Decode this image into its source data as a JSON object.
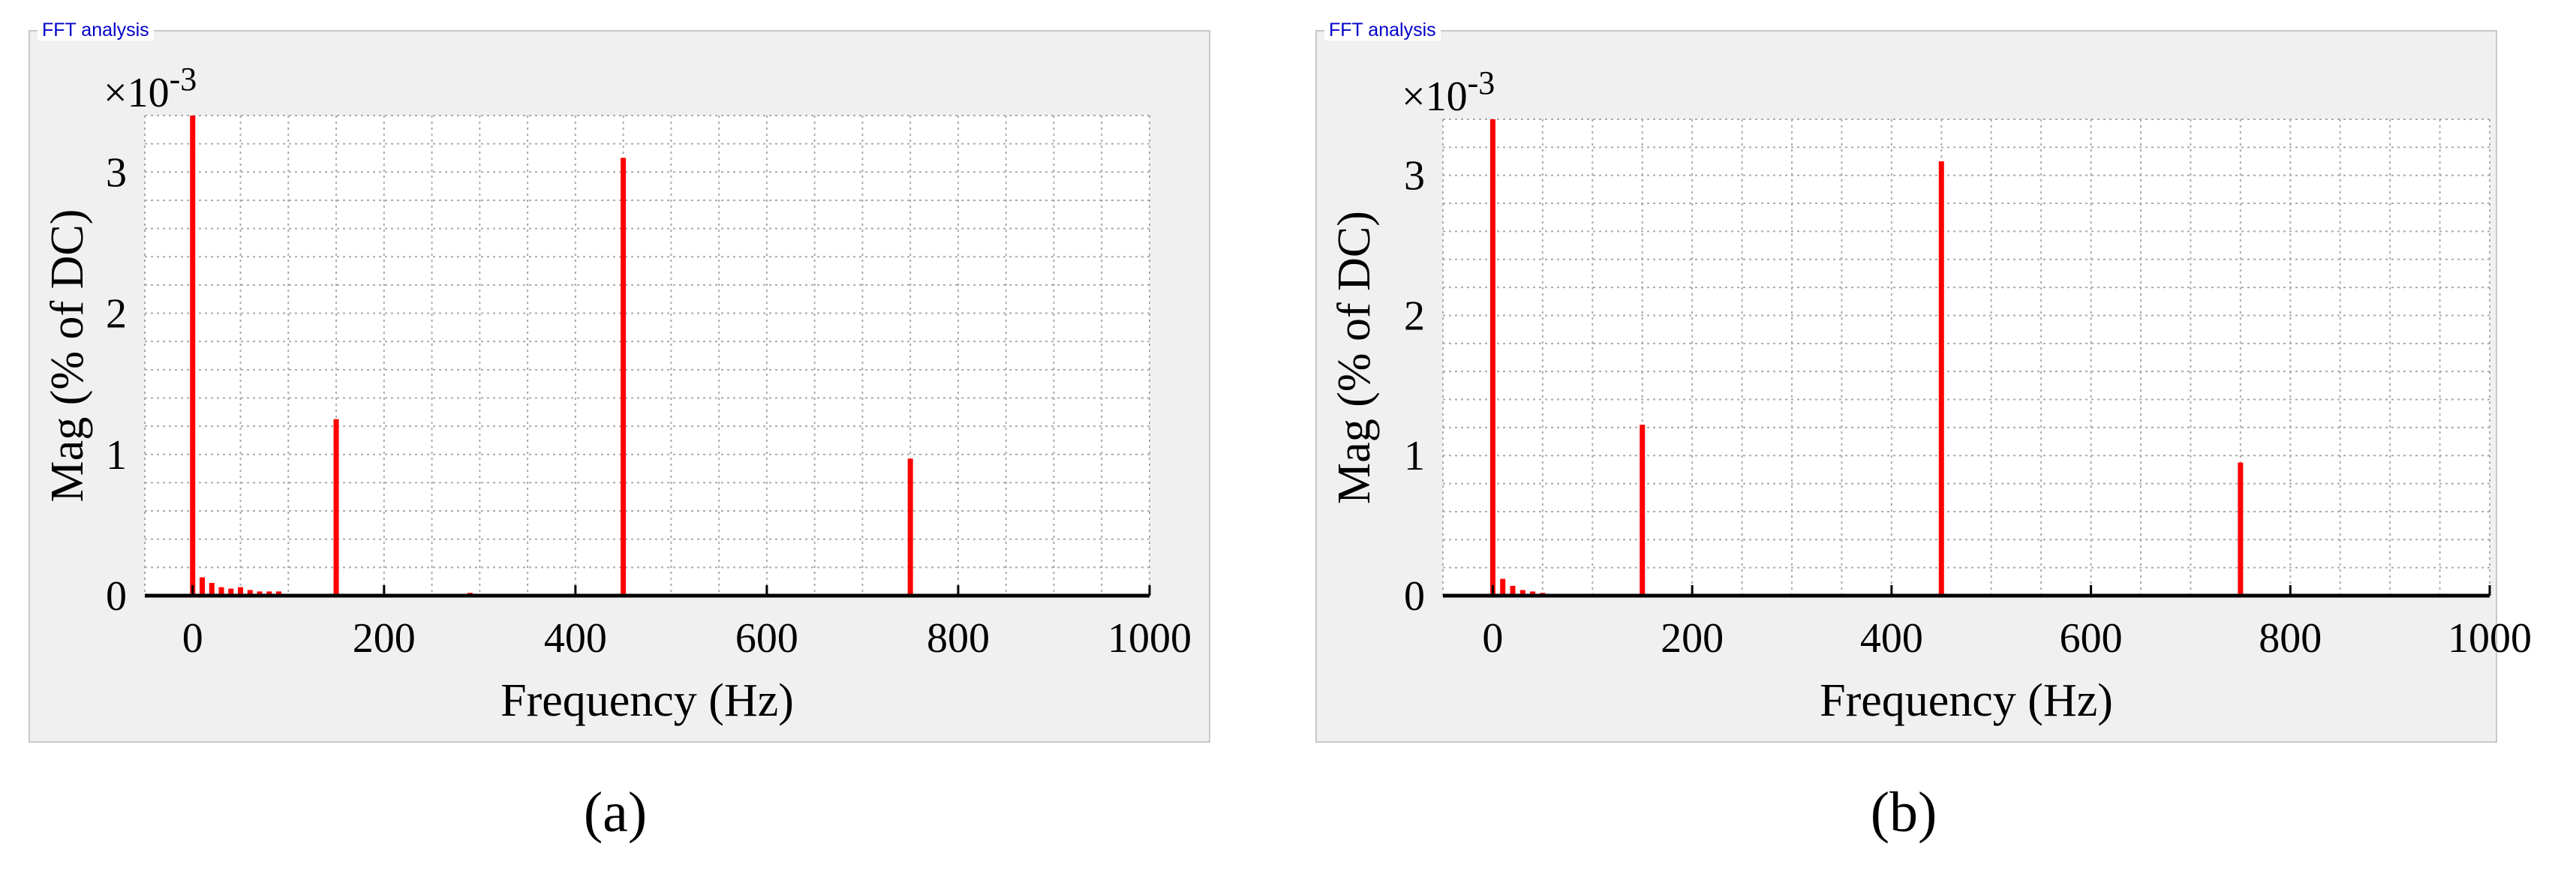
{
  "panels": [
    {
      "title": "FFT analysis",
      "caption": "(a)"
    },
    {
      "title": "FFT analysis",
      "caption": "(b)"
    }
  ],
  "colors": {
    "bar": "#ff0000",
    "panel_bg": "#f0f0f0",
    "grid": "#aaaaaa",
    "title": "#0000c8"
  },
  "chart_data": [
    {
      "type": "bar",
      "xlabel": "Frequency (Hz)",
      "ylabel": "Mag (% of DC)",
      "y_exponent_label": "×10",
      "y_exponent_power": "-3",
      "xlim": [
        -50,
        1000
      ],
      "ylim": [
        0,
        3.4
      ],
      "x_ticks": [
        0,
        200,
        400,
        600,
        800,
        1000
      ],
      "y_ticks": [
        0,
        1,
        2,
        3
      ],
      "grid": true,
      "x": [
        0,
        150,
        450,
        750,
        10,
        20,
        30,
        40,
        50,
        60,
        70,
        80,
        90,
        290
      ],
      "values": [
        3.4,
        1.25,
        3.1,
        0.97,
        0.13,
        0.09,
        0.06,
        0.05,
        0.06,
        0.04,
        0.03,
        0.03,
        0.03,
        0.02
      ]
    },
    {
      "type": "bar",
      "xlabel": "Frequency (Hz)",
      "ylabel": "Mag (% of DC)",
      "y_exponent_label": "×10",
      "y_exponent_power": "-3",
      "xlim": [
        -50,
        1000
      ],
      "ylim": [
        0,
        3.4
      ],
      "x_ticks": [
        0,
        200,
        400,
        600,
        800,
        1000
      ],
      "y_ticks": [
        0,
        1,
        2,
        3
      ],
      "grid": true,
      "x": [
        0,
        150,
        450,
        750,
        10,
        20,
        30,
        40,
        50,
        60
      ],
      "values": [
        3.4,
        1.22,
        3.1,
        0.95,
        0.12,
        0.07,
        0.04,
        0.03,
        0.02,
        0.01
      ]
    }
  ]
}
